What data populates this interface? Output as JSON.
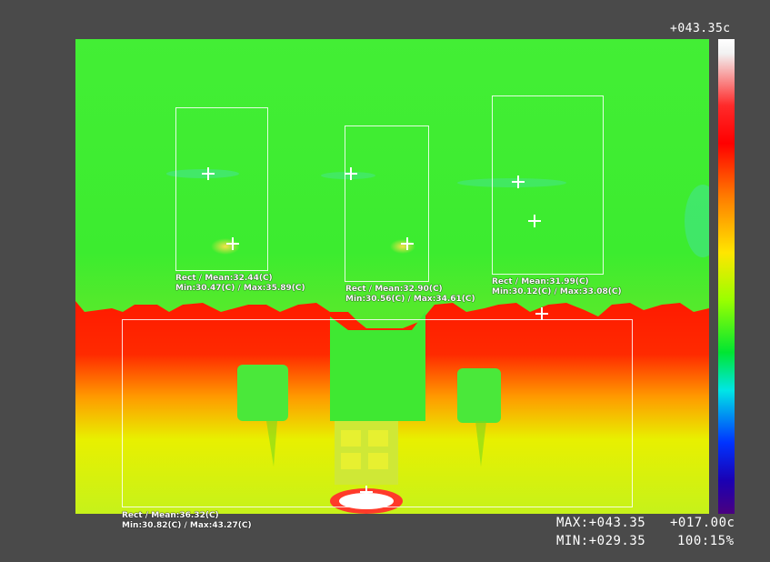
{
  "scale": {
    "top_value": "+043.35c",
    "colors": [
      "#ffffff",
      "#ff0000",
      "#ff7a00",
      "#ffe600",
      "#9aff00",
      "#00e632",
      "#00e6e6",
      "#0033ff",
      "#4a0080"
    ]
  },
  "readouts": {
    "max": "MAX:+043.35",
    "min": "MIN:+029.35",
    "span": "+017.00c",
    "level": "100:15%"
  },
  "rois": [
    {
      "title": "Rect / Mean:32.44(C)",
      "range": "Min:30.47(C) / Max:35.89(C)"
    },
    {
      "title": "Rect / Mean:32.90(C)",
      "range": "Min:30.56(C) / Max:34.61(C)"
    },
    {
      "title": "Rect / Mean:31.99(C)",
      "range": "Min:30.12(C) / Max:33.08(C)"
    },
    {
      "title": "Rect / Mean:36.32(C)",
      "range": "Min:30.82(C) / Max:43.27(C)"
    }
  ]
}
